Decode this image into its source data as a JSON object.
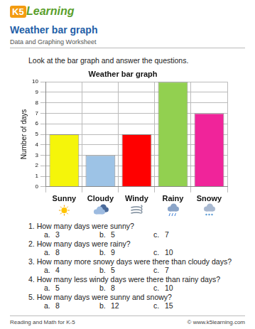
{
  "header": {
    "logo": {
      "mark": "K5",
      "text": "Learning"
    },
    "title": "Weather bar graph",
    "subtitle": "Data and Graphing Worksheet"
  },
  "instructions": "Look at the bar graph and answer the questions.",
  "chart_data": {
    "type": "bar",
    "title": "Weather bar graph",
    "y_label": "Number of days",
    "categories": [
      "Sunny",
      "Cloudy",
      "Windy",
      "Rainy",
      "Snowy"
    ],
    "values": [
      5,
      3,
      5,
      10,
      7
    ],
    "colors": [
      "#f5f50a",
      "#9dc3e6",
      "#ff0000",
      "#92d050",
      "#f0249a"
    ],
    "ylim": [
      0,
      10
    ],
    "yticks": [
      0,
      1,
      2,
      3,
      4,
      5,
      6,
      7,
      8,
      9,
      10
    ],
    "grid": true
  },
  "questions": [
    {
      "label": "1.",
      "text": "How many days were sunny?",
      "options": [
        {
          "label": "a.",
          "text": "3"
        },
        {
          "label": "b.",
          "text": "5"
        },
        {
          "label": "c.",
          "text": "7"
        }
      ]
    },
    {
      "label": "2.",
      "text": "How many days were rainy?",
      "options": [
        {
          "label": "a.",
          "text": "8"
        },
        {
          "label": "b.",
          "text": "9"
        },
        {
          "label": "c.",
          "text": "10"
        }
      ]
    },
    {
      "label": "3.",
      "text": "How many more snowy days were there than cloudy days?",
      "options": [
        {
          "label": "a.",
          "text": "4"
        },
        {
          "label": "b.",
          "text": "5"
        },
        {
          "label": "c.",
          "text": "7"
        }
      ]
    },
    {
      "label": "4.",
      "text": "How many less windy days were there than rainy days?",
      "options": [
        {
          "label": "a.",
          "text": "5"
        },
        {
          "label": "b.",
          "text": "8"
        },
        {
          "label": "c.",
          "text": "10"
        }
      ]
    },
    {
      "label": "5.",
      "text": "How many days were sunny and snowy?",
      "options": [
        {
          "label": "a.",
          "text": "8"
        },
        {
          "label": "b.",
          "text": "12"
        },
        {
          "label": "c.",
          "text": "15"
        }
      ]
    }
  ],
  "footer": {
    "left": "Reading and Math for K-5",
    "right": "© www.k5learning.com"
  }
}
